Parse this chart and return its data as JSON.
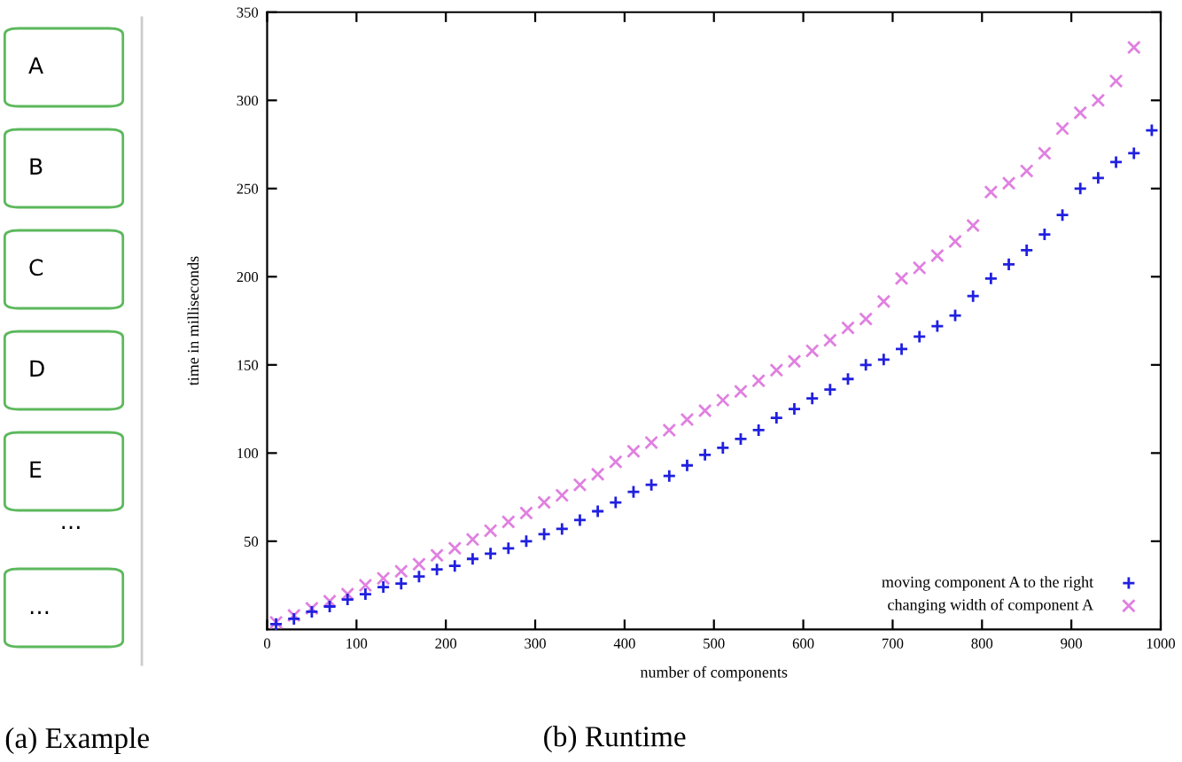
{
  "chart_data": [
    {
      "type": "other",
      "annotations": [
        "A",
        "B",
        "C",
        "D",
        "E",
        "…",
        "…",
        "(a) Example"
      ]
    },
    {
      "type": "scatter",
      "xlabel": "number of components",
      "ylabel": "time in milliseconds",
      "annotations": [
        "(b) Runtime"
      ],
      "xlim": [
        0,
        1000
      ],
      "ylim": [
        0,
        350
      ],
      "xticks": [
        0,
        100,
        200,
        300,
        400,
        500,
        600,
        700,
        800,
        900,
        1000
      ],
      "yticks": [
        50,
        100,
        150,
        200,
        250,
        300,
        350
      ],
      "grid": false,
      "legend": "bottom right",
      "series": [
        {
          "name": "moving component A to the right",
          "color": "#2020e0",
          "marker": "plus",
          "x": [
            10,
            30,
            50,
            70,
            90,
            110,
            130,
            150,
            170,
            190,
            210,
            230,
            250,
            270,
            290,
            310,
            330,
            350,
            370,
            390,
            410,
            430,
            450,
            470,
            490,
            510,
            530,
            550,
            570,
            590,
            610,
            630,
            650,
            670,
            690,
            710,
            730,
            750,
            770,
            790,
            810,
            830,
            850,
            870,
            890,
            910,
            930,
            950,
            970,
            990
          ],
          "values": [
            3,
            6,
            10,
            13,
            17,
            20,
            24,
            26,
            30,
            34,
            36,
            40,
            43,
            46,
            50,
            54,
            57,
            62,
            67,
            72,
            78,
            82,
            87,
            93,
            99,
            103,
            108,
            113,
            120,
            125,
            131,
            136,
            142,
            150,
            153,
            159,
            166,
            172,
            178,
            189,
            199,
            207,
            215,
            224,
            235,
            250,
            256,
            265,
            270,
            283
          ]
        },
        {
          "name": "changing width of component A",
          "color": "#e080e0",
          "marker": "cross",
          "x": [
            10,
            30,
            50,
            70,
            90,
            110,
            130,
            150,
            170,
            190,
            210,
            230,
            250,
            270,
            290,
            310,
            330,
            350,
            370,
            390,
            410,
            430,
            450,
            470,
            490,
            510,
            530,
            550,
            570,
            590,
            610,
            630,
            650,
            670,
            690,
            710,
            730,
            750,
            770,
            790,
            810,
            830,
            850,
            870,
            890,
            910,
            930,
            950,
            970
          ],
          "values": [
            4,
            8,
            12,
            16,
            20,
            25,
            29,
            33,
            37,
            42,
            46,
            51,
            56,
            61,
            66,
            72,
            76,
            82,
            88,
            95,
            101,
            106,
            113,
            119,
            124,
            130,
            135,
            141,
            147,
            152,
            158,
            164,
            171,
            176,
            186,
            199,
            205,
            212,
            220,
            229,
            248,
            253,
            260,
            270,
            284,
            293,
            300,
            311,
            330
          ]
        }
      ]
    }
  ]
}
